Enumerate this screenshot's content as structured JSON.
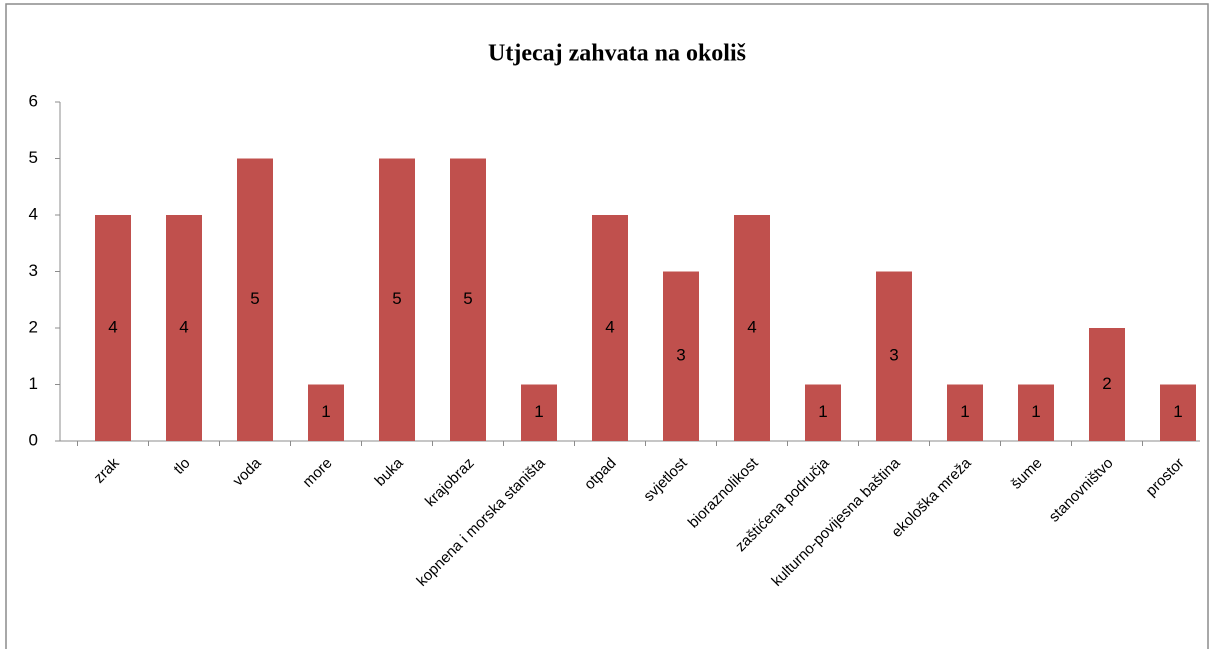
{
  "chart_data": {
    "type": "bar",
    "title": "Utjecaj zahvata na okoliš",
    "categories": [
      "zrak",
      "tlo",
      "voda",
      "more",
      "buka",
      "krajobraz",
      "kopnena i morska staništa",
      "otpad",
      "svjetlost",
      "bioraznolikost",
      "zaštićena područja",
      "kulturno-povijesna baština",
      "ekološka mreža",
      "šume",
      "stanovništvo",
      "prostor"
    ],
    "values": [
      4,
      4,
      5,
      1,
      5,
      5,
      1,
      4,
      3,
      4,
      1,
      3,
      1,
      1,
      2,
      1
    ],
    "color": "#c0504d",
    "ylim": [
      0,
      6
    ],
    "yticks": [
      0,
      1,
      2,
      3,
      4,
      5,
      6
    ],
    "grid": false
  }
}
